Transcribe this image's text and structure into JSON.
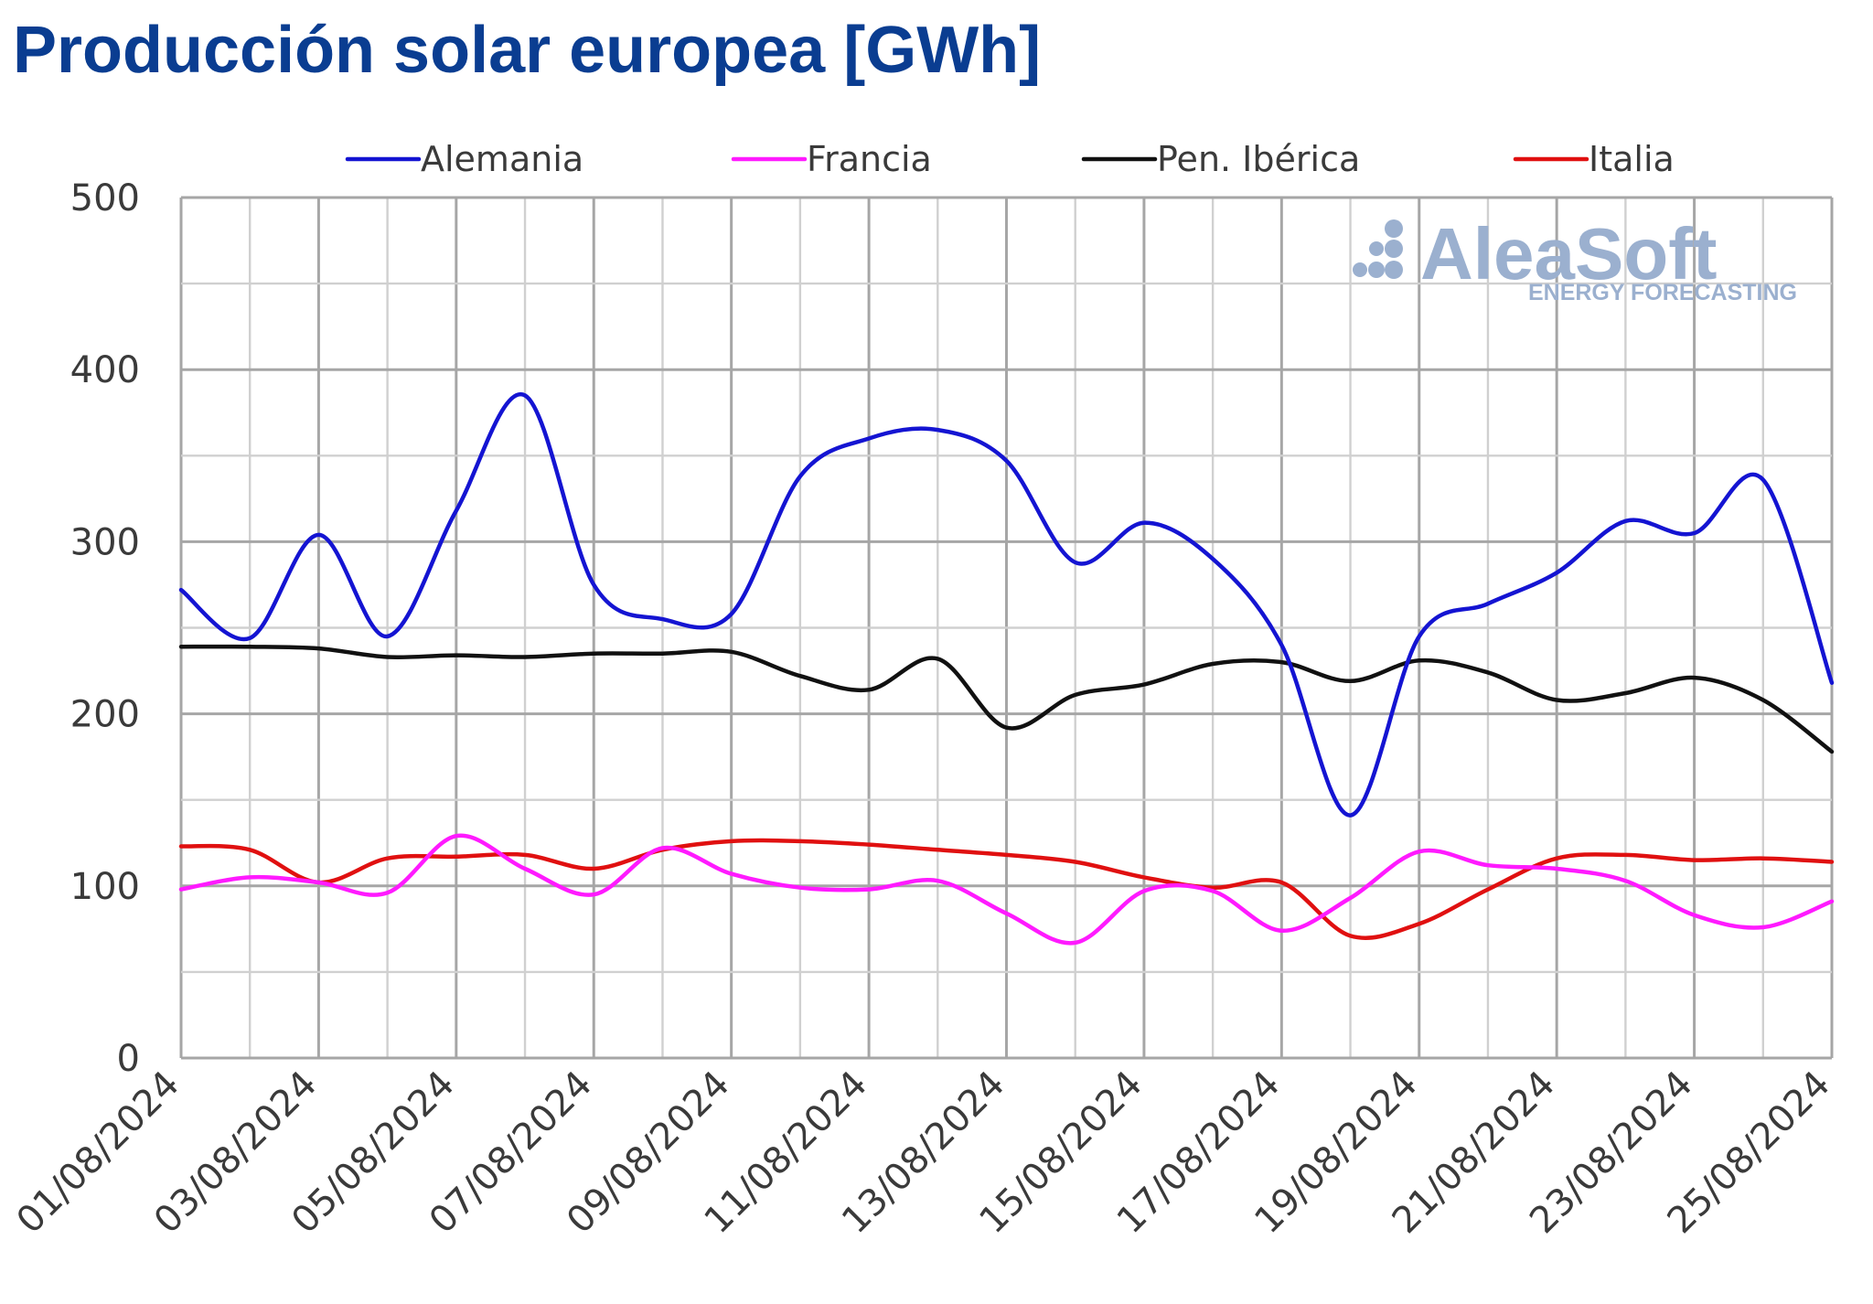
{
  "title": "Producción solar europea [GWh]",
  "watermark": {
    "brand": "AleaSoft",
    "tagline": "ENERGY FORECASTING"
  },
  "chart_data": {
    "type": "line",
    "title": "Producción solar europea [GWh]",
    "xlabel": "",
    "ylabel": "",
    "ylim": [
      0,
      500
    ],
    "yticks": [
      0,
      100,
      200,
      300,
      400,
      500
    ],
    "grid": true,
    "legend_position": "top",
    "x": [
      "01/08/2024",
      "02/08/2024",
      "03/08/2024",
      "04/08/2024",
      "05/08/2024",
      "06/08/2024",
      "07/08/2024",
      "08/08/2024",
      "09/08/2024",
      "10/08/2024",
      "11/08/2024",
      "12/08/2024",
      "13/08/2024",
      "14/08/2024",
      "15/08/2024",
      "16/08/2024",
      "17/08/2024",
      "18/08/2024",
      "19/08/2024",
      "20/08/2024",
      "21/08/2024",
      "22/08/2024",
      "23/08/2024",
      "24/08/2024",
      "25/08/2024"
    ],
    "xtick_labels": [
      "01/08/2024",
      "03/08/2024",
      "05/08/2024",
      "07/08/2024",
      "09/08/2024",
      "11/08/2024",
      "13/08/2024",
      "15/08/2024",
      "17/08/2024",
      "19/08/2024",
      "21/08/2024",
      "23/08/2024",
      "25/08/2024"
    ],
    "series": [
      {
        "name": "Alemania",
        "color": "#1414d2",
        "values": [
          272,
          244,
          304,
          245,
          318,
          385,
          275,
          255,
          258,
          338,
          360,
          365,
          347,
          288,
          311,
          290,
          240,
          141,
          245,
          264,
          282,
          312,
          305,
          336,
          218
        ]
      },
      {
        "name": "Francia",
        "color": "#ff1aff",
        "values": [
          98,
          105,
          102,
          96,
          129,
          110,
          95,
          122,
          107,
          99,
          98,
          103,
          84,
          67,
          97,
          97,
          74,
          93,
          120,
          112,
          110,
          103,
          83,
          76,
          91
        ]
      },
      {
        "name": "Pen. Ibérica",
        "color": "#111111",
        "values": [
          239,
          239,
          238,
          233,
          234,
          233,
          235,
          235,
          236,
          222,
          214,
          232,
          192,
          211,
          217,
          229,
          230,
          219,
          231,
          224,
          208,
          212,
          221,
          208,
          178
        ]
      },
      {
        "name": "Italia",
        "color": "#e01010",
        "values": [
          123,
          121,
          102,
          116,
          117,
          118,
          110,
          121,
          126,
          126,
          124,
          121,
          118,
          114,
          105,
          99,
          102,
          71,
          78,
          98,
          116,
          118,
          115,
          116,
          114
        ]
      }
    ]
  }
}
